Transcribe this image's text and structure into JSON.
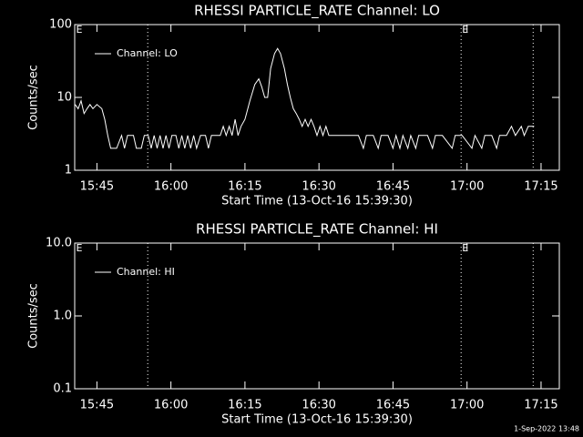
{
  "chart_data": [
    {
      "type": "line",
      "title": "RHESSI PARTICLE_RATE Channel: LO",
      "xlabel": "Start Time (13-Oct-16 15:39:30)",
      "ylabel": "Counts/sec",
      "log_y": true,
      "ylim": [
        1,
        100
      ],
      "yticks": [
        1,
        10,
        100
      ],
      "xlim": [
        940.5,
        1038.7
      ],
      "xticks": [
        {
          "value": 945,
          "label": "15:45"
        },
        {
          "value": 960,
          "label": "16:00"
        },
        {
          "value": 975,
          "label": "16:15"
        },
        {
          "value": 990,
          "label": "16:30"
        },
        {
          "value": 1005,
          "label": "16:45"
        },
        {
          "value": 1020,
          "label": "17:00"
        },
        {
          "value": 1035,
          "label": "17:15"
        }
      ],
      "vlines": [
        955.3,
        1018.8,
        1033.4
      ],
      "annotations": [
        {
          "x": 940.6,
          "text": "E"
        },
        {
          "x": 1018.8,
          "text": "E"
        }
      ],
      "legend": "upper left",
      "x": [
        940.6,
        941.2,
        941.8,
        942.4,
        943,
        943.6,
        944.2,
        945,
        946,
        946.6,
        947.2,
        947.8,
        949,
        950,
        950.6,
        951.2,
        952.4,
        953,
        954,
        954.6,
        955.4,
        956,
        956.6,
        957.2,
        957.8,
        958.4,
        959,
        959.6,
        960.2,
        961,
        961.6,
        962.2,
        962.8,
        963.4,
        964,
        964.6,
        965.2,
        966,
        967,
        967.6,
        968.2,
        969,
        970,
        970.6,
        971.2,
        971.8,
        972.4,
        973,
        973.6,
        974.2,
        975,
        976,
        977,
        977.8,
        978.4,
        979,
        979.6,
        980.2,
        981,
        981.6,
        982.2,
        983,
        983.6,
        984.2,
        984.8,
        985.4,
        986,
        986.6,
        987.2,
        987.8,
        988.4,
        989,
        989.6,
        990.2,
        990.8,
        991.4,
        992,
        993,
        994,
        995,
        996,
        997,
        998,
        999,
        999.6,
        1001,
        1002,
        1002.6,
        1004,
        1005,
        1005.6,
        1006.4,
        1007,
        1008,
        1008.6,
        1009.6,
        1010.2,
        1012,
        1013,
        1013.6,
        1015,
        1017,
        1017.6,
        1019,
        1021,
        1021.6,
        1023,
        1023.6,
        1025,
        1026,
        1026.6,
        1028,
        1029,
        1029.8,
        1031,
        1031.6,
        1032.4,
        1033.6
      ],
      "series": [
        {
          "name": "Channel: LO",
          "color": "#ffffff",
          "values": [
            8,
            7,
            9,
            6,
            7,
            8,
            7,
            8,
            7,
            5,
            3,
            2,
            2,
            3,
            2,
            3,
            3,
            2,
            2,
            3,
            3,
            2,
            3,
            2,
            3,
            2,
            3,
            2,
            3,
            3,
            2,
            3,
            2,
            3,
            2,
            3,
            2,
            3,
            3,
            2,
            3,
            3,
            3,
            4,
            3,
            4,
            3,
            5,
            3,
            4,
            5,
            9,
            15,
            18,
            14,
            10,
            10,
            25,
            40,
            47,
            40,
            25,
            15,
            10,
            7,
            6,
            5,
            4,
            5,
            4,
            5,
            4,
            3,
            4,
            3,
            4,
            3,
            3,
            3,
            3,
            3,
            3,
            3,
            2,
            3,
            3,
            2,
            3,
            3,
            2,
            3,
            2,
            3,
            2,
            3,
            2,
            3,
            3,
            2,
            3,
            3,
            2,
            3,
            3,
            2,
            3,
            2,
            3,
            3,
            2,
            3,
            3,
            4,
            3,
            4,
            3,
            4,
            4
          ]
        }
      ]
    },
    {
      "type": "line",
      "title": "RHESSI PARTICLE_RATE Channel: HI",
      "xlabel": "Start Time (13-Oct-16 15:39:30)",
      "ylabel": "Counts/sec",
      "log_y": true,
      "ylim": [
        0.1,
        10
      ],
      "yticks": [
        0.1,
        {
          "value": 1,
          "label": "1.0"
        },
        {
          "value": 10,
          "label": "10.0"
        }
      ],
      "xlim": [
        940.5,
        1038.7
      ],
      "xticks": [
        {
          "value": 945,
          "label": "15:45"
        },
        {
          "value": 960,
          "label": "16:00"
        },
        {
          "value": 975,
          "label": "16:15"
        },
        {
          "value": 990,
          "label": "16:30"
        },
        {
          "value": 1005,
          "label": "16:45"
        },
        {
          "value": 1020,
          "label": "17:00"
        },
        {
          "value": 1035,
          "label": "17:15"
        }
      ],
      "vlines": [
        955.3,
        1018.8,
        1033.4
      ],
      "annotations": [
        {
          "x": 940.6,
          "text": "E"
        },
        {
          "x": 1018.8,
          "text": "E"
        }
      ],
      "legend": "upper left",
      "x": [],
      "series": [
        {
          "name": "Channel: HI",
          "color": "#ffffff",
          "values": []
        }
      ]
    }
  ],
  "footer": "1-Sep-2022 13:48"
}
